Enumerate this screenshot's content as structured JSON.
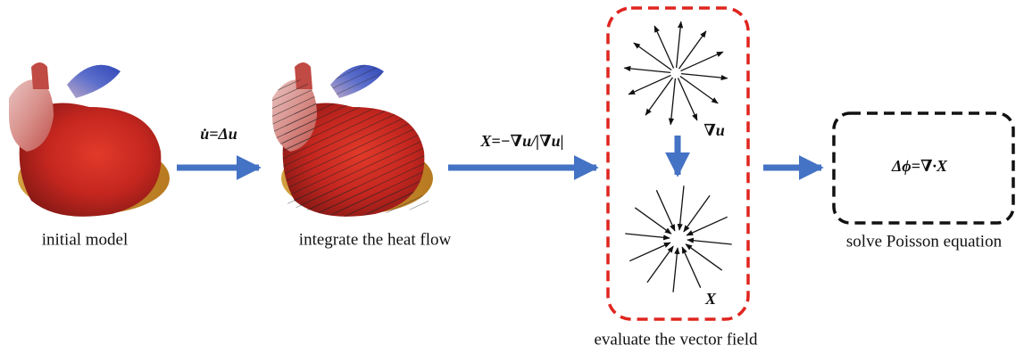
{
  "nodes": [
    {
      "label": "initial model"
    },
    {
      "label": "integrate the heat flow"
    },
    {
      "label": "evaluate the vector field",
      "inner_labels": [
        "∇u",
        "X"
      ]
    },
    {
      "label": "solve Poisson equation",
      "equation": "Δϕ=∇·X"
    }
  ],
  "edges": [
    {
      "label": "u̇=Δu"
    },
    {
      "label": "X=−∇u/|∇u|"
    }
  ]
}
